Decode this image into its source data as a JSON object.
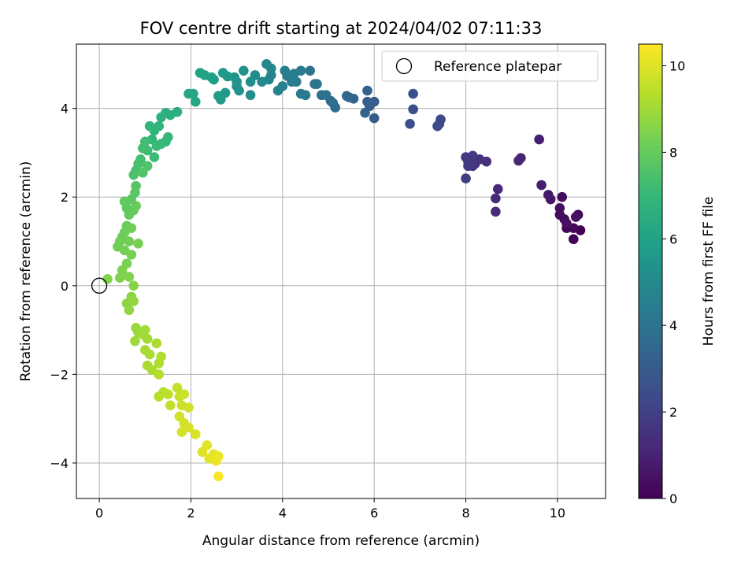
{
  "chart_data": {
    "type": "scatter",
    "title": "FOV centre drift starting at 2024/04/02 07:11:33",
    "xlabel": "Angular distance from reference (arcmin)",
    "ylabel": "Rotation from reference (arcmin)",
    "xlim": [
      -0.5,
      11.05
    ],
    "ylim": [
      -4.8,
      5.45
    ],
    "x_ticks": [
      0,
      2,
      4,
      6,
      8,
      10
    ],
    "y_ticks": [
      -4,
      -2,
      0,
      2,
      4
    ],
    "grid": true,
    "legend": {
      "position": "top-right",
      "entries": [
        "Reference platepar"
      ]
    },
    "reference_point": {
      "x": 0,
      "y": 0,
      "marker": "open-circle"
    },
    "colorbar": {
      "label": "Hours from first FF file",
      "range": [
        0,
        10.5
      ],
      "ticks": [
        0,
        2,
        4,
        6,
        8,
        10
      ],
      "colormap": "viridis"
    },
    "points": [
      {
        "x": 10.5,
        "y": 1.25,
        "t": 0.0
      },
      {
        "x": 10.35,
        "y": 1.05,
        "t": 0.05
      },
      {
        "x": 10.2,
        "y": 1.3,
        "t": 0.1
      },
      {
        "x": 10.45,
        "y": 1.6,
        "t": 0.15
      },
      {
        "x": 10.35,
        "y": 1.3,
        "t": 0.2
      },
      {
        "x": 10.15,
        "y": 1.5,
        "t": 0.25
      },
      {
        "x": 10.05,
        "y": 1.6,
        "t": 0.3
      },
      {
        "x": 10.1,
        "y": 2.0,
        "t": 0.35
      },
      {
        "x": 10.05,
        "y": 1.75,
        "t": 0.4
      },
      {
        "x": 10.2,
        "y": 1.4,
        "t": 0.45
      },
      {
        "x": 10.4,
        "y": 1.55,
        "t": 0.5
      },
      {
        "x": 9.85,
        "y": 1.95,
        "t": 0.6
      },
      {
        "x": 9.8,
        "y": 2.05,
        "t": 0.7
      },
      {
        "x": 9.65,
        "y": 2.27,
        "t": 0.8
      },
      {
        "x": 9.6,
        "y": 3.3,
        "t": 0.9
      },
      {
        "x": 9.2,
        "y": 2.88,
        "t": 1.05
      },
      {
        "x": 9.15,
        "y": 2.82,
        "t": 1.1
      },
      {
        "x": 8.7,
        "y": 2.18,
        "t": 1.2
      },
      {
        "x": 8.65,
        "y": 1.97,
        "t": 1.25
      },
      {
        "x": 8.65,
        "y": 1.67,
        "t": 1.3
      },
      {
        "x": 8.45,
        "y": 2.8,
        "t": 1.45
      },
      {
        "x": 8.3,
        "y": 2.85,
        "t": 1.5
      },
      {
        "x": 8.2,
        "y": 2.75,
        "t": 1.55
      },
      {
        "x": 8.15,
        "y": 2.7,
        "t": 1.6
      },
      {
        "x": 8.05,
        "y": 2.8,
        "t": 1.65
      },
      {
        "x": 8.0,
        "y": 2.9,
        "t": 1.7
      },
      {
        "x": 8.15,
        "y": 2.93,
        "t": 1.75
      },
      {
        "x": 8.05,
        "y": 2.7,
        "t": 1.8
      },
      {
        "x": 8.0,
        "y": 2.42,
        "t": 1.85
      },
      {
        "x": 7.45,
        "y": 3.75,
        "t": 2.25
      },
      {
        "x": 7.38,
        "y": 3.6,
        "t": 2.3
      },
      {
        "x": 7.42,
        "y": 3.65,
        "t": 2.35
      },
      {
        "x": 6.85,
        "y": 3.98,
        "t": 2.5
      },
      {
        "x": 6.85,
        "y": 4.33,
        "t": 2.55
      },
      {
        "x": 6.78,
        "y": 3.65,
        "t": 2.6
      },
      {
        "x": 6.0,
        "y": 4.15,
        "t": 3.0
      },
      {
        "x": 6.0,
        "y": 3.78,
        "t": 3.05
      },
      {
        "x": 5.9,
        "y": 4.05,
        "t": 3.1
      },
      {
        "x": 5.85,
        "y": 4.15,
        "t": 3.15
      },
      {
        "x": 5.85,
        "y": 4.4,
        "t": 3.2
      },
      {
        "x": 5.8,
        "y": 3.9,
        "t": 3.25
      },
      {
        "x": 5.55,
        "y": 4.22,
        "t": 3.4
      },
      {
        "x": 5.45,
        "y": 4.25,
        "t": 3.45
      },
      {
        "x": 5.4,
        "y": 4.28,
        "t": 3.5
      },
      {
        "x": 5.15,
        "y": 4.02,
        "t": 3.65
      },
      {
        "x": 5.1,
        "y": 4.12,
        "t": 3.7
      },
      {
        "x": 5.05,
        "y": 4.17,
        "t": 3.75
      },
      {
        "x": 4.95,
        "y": 4.3,
        "t": 3.85
      },
      {
        "x": 4.85,
        "y": 4.3,
        "t": 3.9
      },
      {
        "x": 4.75,
        "y": 4.55,
        "t": 4.0
      },
      {
        "x": 4.7,
        "y": 4.55,
        "t": 4.05
      },
      {
        "x": 4.6,
        "y": 4.85,
        "t": 4.1
      },
      {
        "x": 4.5,
        "y": 4.3,
        "t": 4.2
      },
      {
        "x": 4.4,
        "y": 4.33,
        "t": 4.25
      },
      {
        "x": 4.4,
        "y": 4.85,
        "t": 4.3
      },
      {
        "x": 4.3,
        "y": 4.6,
        "t": 4.35
      },
      {
        "x": 4.25,
        "y": 4.78,
        "t": 4.4
      },
      {
        "x": 4.2,
        "y": 4.6,
        "t": 4.45
      },
      {
        "x": 4.1,
        "y": 4.73,
        "t": 4.5
      },
      {
        "x": 4.05,
        "y": 4.85,
        "t": 4.55
      },
      {
        "x": 4.0,
        "y": 4.5,
        "t": 4.6
      },
      {
        "x": 3.9,
        "y": 4.4,
        "t": 4.65
      },
      {
        "x": 3.75,
        "y": 4.75,
        "t": 4.75
      },
      {
        "x": 3.7,
        "y": 4.65,
        "t": 4.8
      },
      {
        "x": 3.65,
        "y": 5.0,
        "t": 4.85
      },
      {
        "x": 3.75,
        "y": 4.9,
        "t": 4.9
      },
      {
        "x": 3.55,
        "y": 4.6,
        "t": 5.0
      },
      {
        "x": 3.4,
        "y": 4.75,
        "t": 5.1
      },
      {
        "x": 3.3,
        "y": 4.3,
        "t": 5.15
      },
      {
        "x": 3.3,
        "y": 4.6,
        "t": 5.2
      },
      {
        "x": 3.15,
        "y": 4.85,
        "t": 5.25
      },
      {
        "x": 3.05,
        "y": 4.4,
        "t": 5.3
      },
      {
        "x": 3.0,
        "y": 4.5,
        "t": 5.35
      },
      {
        "x": 3.0,
        "y": 4.6,
        "t": 5.4
      },
      {
        "x": 2.95,
        "y": 4.7,
        "t": 5.45
      },
      {
        "x": 2.8,
        "y": 4.72,
        "t": 5.55
      },
      {
        "x": 2.75,
        "y": 4.35,
        "t": 5.6
      },
      {
        "x": 2.7,
        "y": 4.8,
        "t": 5.65
      },
      {
        "x": 2.65,
        "y": 4.2,
        "t": 5.7
      },
      {
        "x": 2.6,
        "y": 4.28,
        "t": 5.75
      },
      {
        "x": 2.5,
        "y": 4.65,
        "t": 5.85
      },
      {
        "x": 2.45,
        "y": 4.7,
        "t": 5.9
      },
      {
        "x": 2.3,
        "y": 4.75,
        "t": 6.0
      },
      {
        "x": 2.2,
        "y": 4.8,
        "t": 6.05
      },
      {
        "x": 2.1,
        "y": 4.15,
        "t": 6.15
      },
      {
        "x": 2.05,
        "y": 4.33,
        "t": 6.2
      },
      {
        "x": 1.95,
        "y": 4.33,
        "t": 6.25
      },
      {
        "x": 1.7,
        "y": 3.92,
        "t": 6.5
      },
      {
        "x": 1.55,
        "y": 3.85,
        "t": 6.6
      },
      {
        "x": 1.45,
        "y": 3.9,
        "t": 6.65
      },
      {
        "x": 1.35,
        "y": 3.8,
        "t": 6.7
      },
      {
        "x": 1.3,
        "y": 3.6,
        "t": 6.75
      },
      {
        "x": 1.2,
        "y": 3.5,
        "t": 6.8
      },
      {
        "x": 1.15,
        "y": 3.3,
        "t": 6.85
      },
      {
        "x": 1.1,
        "y": 3.6,
        "t": 6.9
      },
      {
        "x": 1.45,
        "y": 3.25,
        "t": 6.95
      },
      {
        "x": 1.5,
        "y": 3.35,
        "t": 7.0
      },
      {
        "x": 1.35,
        "y": 3.2,
        "t": 7.05
      },
      {
        "x": 1.25,
        "y": 3.15,
        "t": 7.1
      },
      {
        "x": 1.2,
        "y": 2.9,
        "t": 7.15
      },
      {
        "x": 1.05,
        "y": 3.05,
        "t": 7.2
      },
      {
        "x": 1.0,
        "y": 3.25,
        "t": 7.25
      },
      {
        "x": 0.95,
        "y": 3.1,
        "t": 7.3
      },
      {
        "x": 0.9,
        "y": 2.85,
        "t": 7.35
      },
      {
        "x": 0.85,
        "y": 2.75,
        "t": 7.4
      },
      {
        "x": 0.8,
        "y": 2.6,
        "t": 7.45
      },
      {
        "x": 0.75,
        "y": 2.5,
        "t": 7.5
      },
      {
        "x": 1.05,
        "y": 2.7,
        "t": 7.55
      },
      {
        "x": 0.95,
        "y": 2.55,
        "t": 7.6
      },
      {
        "x": 0.8,
        "y": 2.25,
        "t": 7.7
      },
      {
        "x": 0.78,
        "y": 2.1,
        "t": 7.75
      },
      {
        "x": 0.7,
        "y": 1.95,
        "t": 7.8
      },
      {
        "x": 0.6,
        "y": 1.75,
        "t": 7.85
      },
      {
        "x": 0.55,
        "y": 1.9,
        "t": 7.9
      },
      {
        "x": 0.65,
        "y": 1.6,
        "t": 7.95
      },
      {
        "x": 0.75,
        "y": 1.7,
        "t": 8.0
      },
      {
        "x": 0.8,
        "y": 1.8,
        "t": 8.02
      },
      {
        "x": 0.6,
        "y": 1.35,
        "t": 8.05
      },
      {
        "x": 0.55,
        "y": 1.2,
        "t": 8.1
      },
      {
        "x": 0.5,
        "y": 1.1,
        "t": 8.12
      },
      {
        "x": 0.45,
        "y": 1.0,
        "t": 8.15
      },
      {
        "x": 0.4,
        "y": 0.88,
        "t": 8.18
      },
      {
        "x": 0.7,
        "y": 1.3,
        "t": 8.2
      },
      {
        "x": 0.65,
        "y": 1.0,
        "t": 8.22
      },
      {
        "x": 0.55,
        "y": 0.8,
        "t": 8.25
      },
      {
        "x": 0.7,
        "y": 0.7,
        "t": 8.3
      },
      {
        "x": 0.85,
        "y": 0.95,
        "t": 8.32
      },
      {
        "x": 0.6,
        "y": 0.5,
        "t": 8.35
      },
      {
        "x": 0.5,
        "y": 0.35,
        "t": 8.4
      },
      {
        "x": 0.45,
        "y": 0.18,
        "t": 8.45
      },
      {
        "x": 0.65,
        "y": 0.2,
        "t": 8.48
      },
      {
        "x": 0.18,
        "y": 0.15,
        "t": 8.5
      },
      {
        "x": 0.75,
        "y": 0.0,
        "t": 8.6
      },
      {
        "x": 0.7,
        "y": -0.25,
        "t": 8.65
      },
      {
        "x": 0.6,
        "y": -0.4,
        "t": 8.7
      },
      {
        "x": 0.65,
        "y": -0.55,
        "t": 8.75
      },
      {
        "x": 0.75,
        "y": -0.35,
        "t": 8.8
      },
      {
        "x": 0.8,
        "y": -0.95,
        "t": 8.85
      },
      {
        "x": 0.85,
        "y": -1.05,
        "t": 8.9
      },
      {
        "x": 0.78,
        "y": -1.25,
        "t": 8.95
      },
      {
        "x": 0.95,
        "y": -1.1,
        "t": 9.0
      },
      {
        "x": 1.0,
        "y": -1.0,
        "t": 9.02
      },
      {
        "x": 1.05,
        "y": -1.2,
        "t": 9.05
      },
      {
        "x": 1.0,
        "y": -1.45,
        "t": 9.1
      },
      {
        "x": 1.1,
        "y": -1.55,
        "t": 9.12
      },
      {
        "x": 1.05,
        "y": -1.8,
        "t": 9.15
      },
      {
        "x": 1.15,
        "y": -1.9,
        "t": 9.18
      },
      {
        "x": 1.25,
        "y": -1.3,
        "t": 9.2
      },
      {
        "x": 1.3,
        "y": -1.75,
        "t": 9.22
      },
      {
        "x": 1.35,
        "y": -1.6,
        "t": 9.25
      },
      {
        "x": 1.3,
        "y": -2.0,
        "t": 9.3
      },
      {
        "x": 1.4,
        "y": -2.4,
        "t": 9.35
      },
      {
        "x": 1.3,
        "y": -2.5,
        "t": 9.4
      },
      {
        "x": 1.5,
        "y": -2.45,
        "t": 9.45
      },
      {
        "x": 1.55,
        "y": -2.7,
        "t": 9.55
      },
      {
        "x": 1.7,
        "y": -2.3,
        "t": 9.6
      },
      {
        "x": 1.75,
        "y": -2.5,
        "t": 9.65
      },
      {
        "x": 1.85,
        "y": -2.45,
        "t": 9.7
      },
      {
        "x": 1.8,
        "y": -2.7,
        "t": 9.72
      },
      {
        "x": 1.95,
        "y": -2.75,
        "t": 9.75
      },
      {
        "x": 1.75,
        "y": -2.95,
        "t": 9.78
      },
      {
        "x": 1.85,
        "y": -3.1,
        "t": 9.8
      },
      {
        "x": 1.8,
        "y": -3.3,
        "t": 9.85
      },
      {
        "x": 1.95,
        "y": -3.2,
        "t": 9.88
      },
      {
        "x": 2.1,
        "y": -3.35,
        "t": 9.9
      },
      {
        "x": 2.25,
        "y": -3.75,
        "t": 10.0
      },
      {
        "x": 2.35,
        "y": -3.6,
        "t": 10.05
      },
      {
        "x": 2.4,
        "y": -3.9,
        "t": 10.1
      },
      {
        "x": 2.5,
        "y": -3.8,
        "t": 10.15
      },
      {
        "x": 2.6,
        "y": -3.85,
        "t": 10.2
      },
      {
        "x": 2.55,
        "y": -3.95,
        "t": 10.25
      },
      {
        "x": 2.6,
        "y": -4.3,
        "t": 10.4
      }
    ]
  }
}
